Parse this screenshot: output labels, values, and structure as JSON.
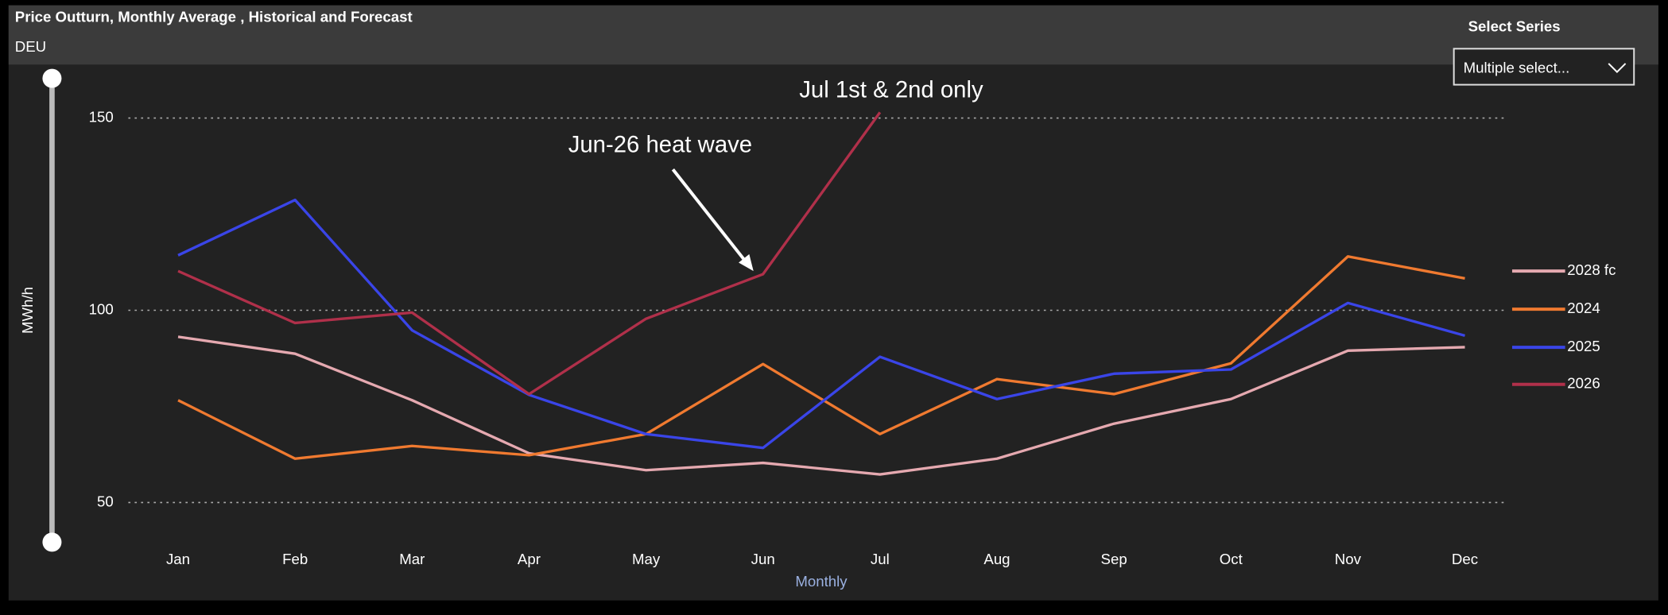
{
  "chart_data": {
    "type": "line",
    "title": "Price Outturn, Monthly Average , Historical and Forecast",
    "subtitle": "DEU",
    "y_label": "MWh/h",
    "x_label": "Monthly",
    "series_selector": {
      "label": "Select Series",
      "value": "Multiple select..."
    },
    "categories": [
      "Jan",
      "Feb",
      "Mar",
      "Apr",
      "May",
      "Jun",
      "Jul",
      "Aug",
      "Sep",
      "Oct",
      "Nov",
      "Dec"
    ],
    "ylim": [
      40,
      160
    ],
    "yticks": [
      50,
      100,
      150
    ],
    "grid": true,
    "legend": "right",
    "series": [
      {
        "name": "2028 fc",
        "color": "#e5a9b0",
        "values": [
          93.1,
          88.7,
          76.6,
          62.8,
          58.4,
          60.3,
          57.3,
          61.4,
          70.5,
          76.9,
          89.5,
          90.4
        ]
      },
      {
        "name": "2024",
        "color": "#f07a30",
        "values": [
          76.6,
          61.4,
          64.7,
          62.3,
          67.8,
          86.0,
          67.8,
          82.1,
          78.2,
          86.2,
          114.0,
          108.3
        ]
      },
      {
        "name": "2025",
        "color": "#3a45e8",
        "values": [
          114.3,
          128.7,
          94.8,
          78.0,
          67.8,
          64.2,
          87.9,
          76.9,
          83.5,
          84.6,
          101.9,
          93.4
        ]
      },
      {
        "name": "2026",
        "color": "#b0304a",
        "values": [
          110.2,
          96.7,
          99.4,
          78.2,
          97.8,
          109.4,
          151.5,
          null,
          null,
          null,
          null,
          null
        ]
      }
    ],
    "annotations": [
      {
        "text": "Jul 1st & 2nd only"
      },
      {
        "text": "Jun-26 heat wave"
      }
    ]
  }
}
